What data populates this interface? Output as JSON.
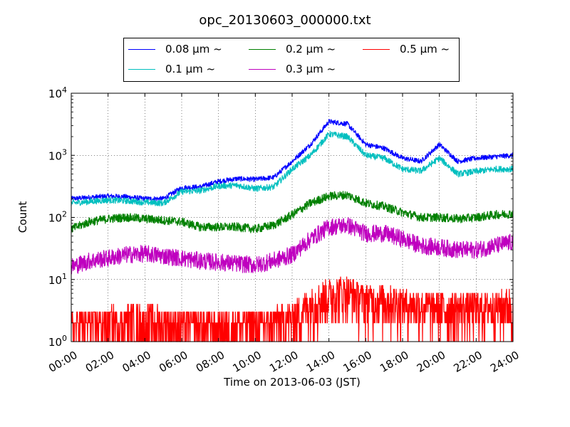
{
  "chart_data": {
    "type": "line",
    "title": "opc_20130603_000000.txt",
    "xlabel": "Time on 2013-06-03 (JST)",
    "ylabel": "Count",
    "yscale": "log",
    "ylim": [
      1,
      10000
    ],
    "xlim": [
      "00:00",
      "24:00"
    ],
    "x_tick_labels": [
      "00:00",
      "02:00",
      "04:00",
      "06:00",
      "08:00",
      "10:00",
      "12:00",
      "14:00",
      "16:00",
      "18:00",
      "20:00",
      "22:00",
      "24:00"
    ],
    "y_tick_labels": [
      {
        "base": "10",
        "exp": "0"
      },
      {
        "base": "10",
        "exp": "1"
      },
      {
        "base": "10",
        "exp": "2"
      },
      {
        "base": "10",
        "exp": "3"
      },
      {
        "base": "10",
        "exp": "4"
      }
    ],
    "grid": true,
    "legend_position": "top-center",
    "legend_columns": 3,
    "x_hours": [
      0,
      1,
      2,
      3,
      4,
      5,
      6,
      7,
      8,
      9,
      10,
      11,
      12,
      13,
      14,
      15,
      16,
      17,
      18,
      19,
      20,
      21,
      22,
      23,
      24
    ],
    "series": [
      {
        "name": "0.08 μm ~",
        "color": "#0000ff",
        "values": [
          200,
          210,
          220,
          215,
          200,
          200,
          300,
          310,
          380,
          420,
          410,
          440,
          800,
          1500,
          3500,
          3200,
          1500,
          1300,
          900,
          800,
          1500,
          800,
          900,
          950,
          1000
        ]
      },
      {
        "name": "0.1 μm ~",
        "color": "#00bfbf",
        "values": [
          170,
          180,
          190,
          185,
          175,
          170,
          260,
          270,
          320,
          330,
          290,
          310,
          600,
          1000,
          2200,
          2000,
          1000,
          900,
          600,
          560,
          900,
          500,
          550,
          600,
          600
        ]
      },
      {
        "name": "0.2 μm ~",
        "color": "#008000",
        "values": [
          65,
          85,
          95,
          100,
          95,
          90,
          85,
          70,
          70,
          70,
          65,
          75,
          110,
          170,
          220,
          230,
          170,
          150,
          120,
          100,
          100,
          95,
          100,
          110,
          115
        ]
      },
      {
        "name": "0.3 μm ~",
        "color": "#bf00bf",
        "values": [
          16,
          20,
          22,
          25,
          26,
          24,
          22,
          20,
          19,
          18,
          17,
          20,
          25,
          45,
          70,
          75,
          55,
          55,
          45,
          35,
          33,
          30,
          30,
          35,
          40
        ]
      },
      {
        "name": "0.5 μm ~",
        "color": "#ff0000",
        "values": [
          1.5,
          1.6,
          1.7,
          1.8,
          1.8,
          1.7,
          1.6,
          1.6,
          1.5,
          1.6,
          1.6,
          1.7,
          2,
          3.5,
          5,
          5.5,
          4,
          4,
          3.5,
          3.2,
          3,
          3,
          3,
          3,
          3.5
        ]
      }
    ]
  }
}
